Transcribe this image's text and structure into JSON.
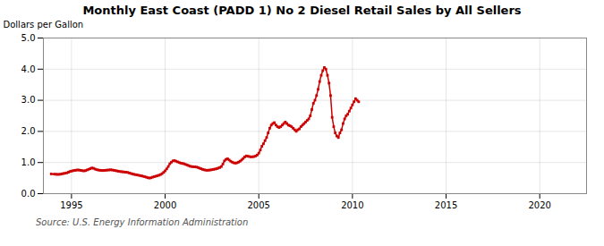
{
  "chart_data": {
    "type": "line",
    "title": "Monthly East Coast (PADD 1) No 2 Diesel Retail Sales by All Sellers",
    "ylabel": "Dollars per Gallon",
    "annotation": "Source: U.S. Energy Information Administration",
    "color": "#cc0000",
    "marker": "square",
    "grid": true,
    "xlim": [
      1993.5,
      2022.5
    ],
    "xticks": [
      1995,
      2000,
      2005,
      2010,
      2015,
      2020
    ],
    "ylim": [
      0.0,
      5.0
    ],
    "yticks": [
      {
        "value": 0.0,
        "label": "0.0"
      },
      {
        "value": 1.0,
        "label": "1.0"
      },
      {
        "value": 2.0,
        "label": "2.0"
      },
      {
        "value": 3.0,
        "label": "3.0"
      },
      {
        "value": 4.0,
        "label": "4.0"
      },
      {
        "value": 5.0,
        "label": "5.0"
      }
    ],
    "x": [
      1993.917,
      1994.083,
      1994.167,
      1994.25,
      1994.333,
      1994.417,
      1994.5,
      1994.583,
      1994.667,
      1994.75,
      1994.833,
      1994.917,
      1995.0,
      1995.083,
      1995.167,
      1995.25,
      1995.333,
      1995.417,
      1995.5,
      1995.583,
      1995.667,
      1995.75,
      1995.833,
      1995.917,
      1996.0,
      1996.083,
      1996.167,
      1996.25,
      1996.333,
      1996.417,
      1996.5,
      1996.583,
      1996.667,
      1996.75,
      1996.833,
      1996.917,
      1997.0,
      1997.083,
      1997.167,
      1997.25,
      1997.333,
      1997.417,
      1997.5,
      1997.583,
      1997.667,
      1997.75,
      1997.833,
      1997.917,
      1998.0,
      1998.083,
      1998.167,
      1998.25,
      1998.333,
      1998.417,
      1998.5,
      1998.583,
      1998.667,
      1998.75,
      1998.833,
      1998.917,
      1999.0,
      1999.083,
      1999.167,
      1999.25,
      1999.333,
      1999.417,
      1999.5,
      1999.583,
      1999.667,
      1999.75,
      1999.833,
      1999.917,
      2000.0,
      2000.083,
      2000.167,
      2000.25,
      2000.333,
      2000.417,
      2000.5,
      2000.583,
      2000.667,
      2000.75,
      2000.833,
      2000.917,
      2001.0,
      2001.083,
      2001.167,
      2001.25,
      2001.333,
      2001.417,
      2001.5,
      2001.583,
      2001.667,
      2001.75,
      2001.833,
      2001.917,
      2002.0,
      2002.083,
      2002.167,
      2002.25,
      2002.333,
      2002.417,
      2002.5,
      2002.583,
      2002.667,
      2002.75,
      2002.833,
      2002.917,
      2003.0,
      2003.083,
      2003.167,
      2003.25,
      2003.333,
      2003.417,
      2003.5,
      2003.583,
      2003.667,
      2003.75,
      2003.833,
      2003.917,
      2004.0,
      2004.083,
      2004.167,
      2004.25,
      2004.333,
      2004.417,
      2004.5,
      2004.583,
      2004.667,
      2004.75,
      2004.833,
      2004.917,
      2005.0,
      2005.083,
      2005.167,
      2005.25,
      2005.333,
      2005.417,
      2005.5,
      2005.583,
      2005.667,
      2005.75,
      2005.833,
      2005.917,
      2006.0,
      2006.083,
      2006.167,
      2006.25,
      2006.333,
      2006.417,
      2006.5,
      2006.583,
      2006.667,
      2006.75,
      2006.833,
      2006.917,
      2007.0,
      2007.083,
      2007.167,
      2007.25,
      2007.333,
      2007.417,
      2007.5,
      2007.583,
      2007.667,
      2007.75,
      2007.833,
      2007.917,
      2008.0,
      2008.083,
      2008.167,
      2008.25,
      2008.333,
      2008.417,
      2008.5,
      2008.583,
      2008.667,
      2008.75,
      2008.833,
      2008.917,
      2009.0,
      2009.083,
      2009.167,
      2009.25,
      2009.333,
      2009.417,
      2009.5,
      2009.583,
      2009.667,
      2009.75,
      2009.833,
      2009.917,
      2010.0,
      2010.083,
      2010.167,
      2010.25,
      2010.333
    ],
    "values": [
      0.635,
      0.628,
      0.622,
      0.619,
      0.621,
      0.626,
      0.638,
      0.648,
      0.657,
      0.668,
      0.688,
      0.712,
      0.725,
      0.738,
      0.748,
      0.755,
      0.763,
      0.757,
      0.748,
      0.738,
      0.732,
      0.741,
      0.762,
      0.782,
      0.802,
      0.825,
      0.818,
      0.793,
      0.772,
      0.762,
      0.753,
      0.748,
      0.742,
      0.748,
      0.752,
      0.758,
      0.762,
      0.767,
      0.762,
      0.752,
      0.742,
      0.733,
      0.722,
      0.712,
      0.706,
      0.701,
      0.695,
      0.691,
      0.682,
      0.666,
      0.65,
      0.636,
      0.621,
      0.611,
      0.601,
      0.591,
      0.581,
      0.571,
      0.557,
      0.543,
      0.527,
      0.511,
      0.501,
      0.511,
      0.531,
      0.547,
      0.561,
      0.577,
      0.592,
      0.613,
      0.642,
      0.683,
      0.733,
      0.795,
      0.873,
      0.962,
      1.012,
      1.053,
      1.063,
      1.043,
      1.022,
      1.001,
      0.982,
      0.971,
      0.962,
      0.942,
      0.922,
      0.901,
      0.881,
      0.871,
      0.866,
      0.861,
      0.856,
      0.841,
      0.821,
      0.801,
      0.781,
      0.766,
      0.756,
      0.751,
      0.756,
      0.761,
      0.771,
      0.781,
      0.791,
      0.801,
      0.821,
      0.841,
      0.871,
      0.951,
      1.052,
      1.102,
      1.122,
      1.082,
      1.042,
      1.012,
      0.991,
      0.981,
      0.991,
      1.012,
      1.042,
      1.082,
      1.132,
      1.182,
      1.213,
      1.202,
      1.192,
      1.182,
      1.186,
      1.192,
      1.212,
      1.242,
      1.302,
      1.402,
      1.523,
      1.603,
      1.703,
      1.803,
      1.953,
      2.103,
      2.203,
      2.253,
      2.283,
      2.203,
      2.153,
      2.122,
      2.152,
      2.202,
      2.252,
      2.302,
      2.252,
      2.202,
      2.182,
      2.152,
      2.102,
      2.052,
      2.002,
      2.052,
      2.082,
      2.152,
      2.202,
      2.252,
      2.302,
      2.352,
      2.402,
      2.502,
      2.702,
      2.902,
      3.002,
      3.152,
      3.352,
      3.602,
      3.802,
      3.952,
      4.052,
      4.002,
      3.802,
      3.552,
      3.152,
      2.452,
      2.152,
      1.952,
      1.852,
      1.802,
      1.952,
      2.052,
      2.252,
      2.402,
      2.502,
      2.552,
      2.652,
      2.752,
      2.852,
      2.952,
      3.052,
      3.002,
      2.952
    ]
  }
}
